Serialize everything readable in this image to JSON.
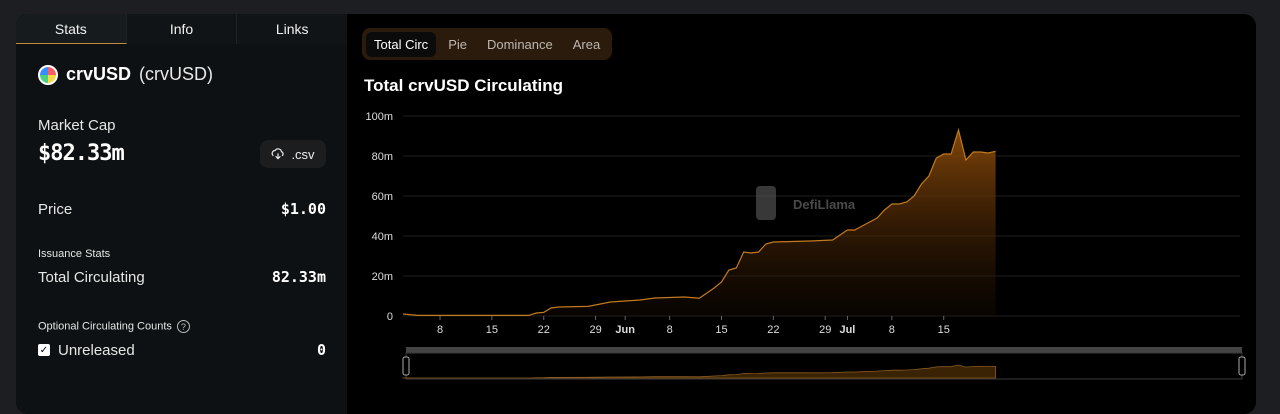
{
  "tabs": [
    "Stats",
    "Info",
    "Links"
  ],
  "coin": {
    "name": "crvUSD",
    "symbol": "(crvUSD)"
  },
  "market_cap": {
    "label": "Market Cap",
    "value": "$82.33m"
  },
  "csv_label": ".csv",
  "price": {
    "label": "Price",
    "value": "$1.00"
  },
  "issuance": {
    "section": "Issuance Stats",
    "label": "Total Circulating",
    "value": "82.33m"
  },
  "optional": {
    "label": "Optional Circulating Counts",
    "help": "?",
    "unreleased_label": "Unreleased",
    "unreleased_value": "0"
  },
  "chart_tabs": [
    "Total Circ",
    "Pie",
    "Dominance",
    "Area"
  ],
  "chart_title": "Total crvUSD Circulating",
  "watermark": "DefiLlama",
  "colors": {
    "accent": "#c27a1f",
    "fill_top": "#8a4a0a"
  },
  "chart_data": {
    "type": "area",
    "title": "Total crvUSD Circulating",
    "y_ticks": [
      "0",
      "20m",
      "40m",
      "60m",
      "80m",
      "100m"
    ],
    "x_ticks": [
      "8",
      "15",
      "22",
      "29",
      "Jun",
      "8",
      "15",
      "22",
      "29",
      "Jul",
      "8",
      "15"
    ],
    "ylim": [
      0,
      100
    ],
    "x_day_range": [
      0,
      113
    ],
    "x_day_ticks": [
      5,
      12,
      19,
      26,
      30,
      36,
      43,
      50,
      57,
      60,
      66,
      73
    ],
    "points": [
      [
        0,
        1
      ],
      [
        2,
        0.3
      ],
      [
        17,
        0.3
      ],
      [
        18,
        1.5
      ],
      [
        19,
        1.8
      ],
      [
        20,
        4
      ],
      [
        21,
        4.5
      ],
      [
        25,
        4.8
      ],
      [
        28,
        7
      ],
      [
        32,
        8
      ],
      [
        34,
        9
      ],
      [
        38,
        9.5
      ],
      [
        40,
        8.9
      ],
      [
        42,
        14
      ],
      [
        43,
        17
      ],
      [
        44,
        23
      ],
      [
        45,
        24
      ],
      [
        46,
        32
      ],
      [
        47,
        31.5
      ],
      [
        48,
        32
      ],
      [
        49,
        36
      ],
      [
        50,
        37
      ],
      [
        55,
        37.5
      ],
      [
        58,
        38
      ],
      [
        60,
        43
      ],
      [
        61,
        43
      ],
      [
        62,
        45
      ],
      [
        63,
        47
      ],
      [
        64,
        49
      ],
      [
        65,
        53
      ],
      [
        66,
        56
      ],
      [
        67,
        56
      ],
      [
        68,
        57
      ],
      [
        69,
        60
      ],
      [
        70,
        66
      ],
      [
        71,
        70
      ],
      [
        72,
        79
      ],
      [
        73,
        81
      ],
      [
        74,
        81
      ],
      [
        75,
        93
      ],
      [
        76,
        78
      ],
      [
        77,
        82
      ],
      [
        78,
        82
      ],
      [
        79,
        81.5
      ],
      [
        80,
        82.33
      ]
    ],
    "grid": true,
    "legend": "none"
  }
}
